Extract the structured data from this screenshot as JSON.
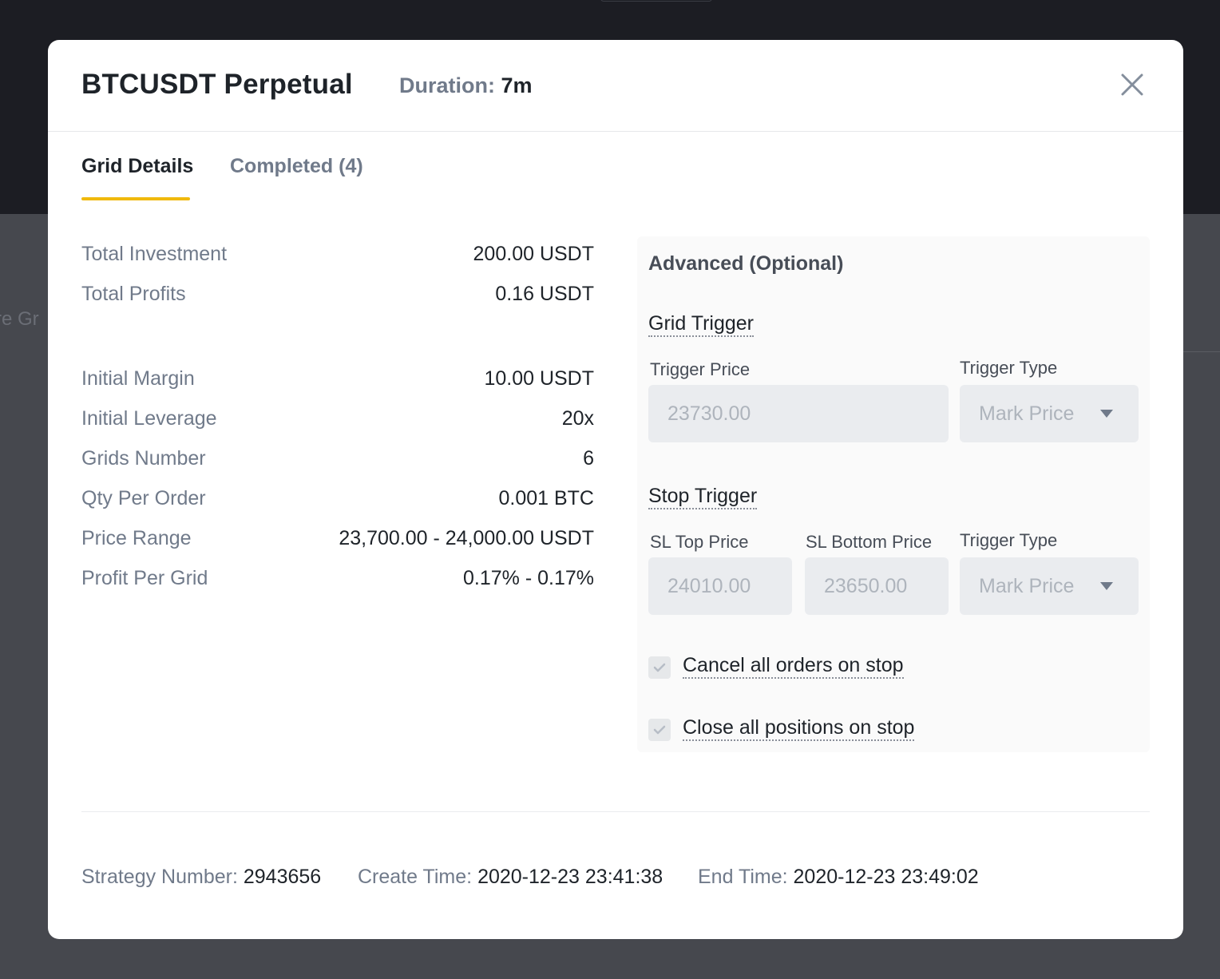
{
  "backdrop": {
    "side_text": "re Grid"
  },
  "modal": {
    "title": "BTCUSDT Perpetual",
    "duration_label": "Duration:",
    "duration_value": "7m",
    "close_icon": "close-icon"
  },
  "tabs": [
    {
      "label": "Grid Details",
      "active": true
    },
    {
      "label": "Completed (4)",
      "active": false
    }
  ],
  "accent_color": "#f0b90b",
  "details": [
    {
      "label": "Total Investment",
      "value": "200.00 USDT"
    },
    {
      "label": "Total Profits",
      "value": "0.16 USDT"
    },
    {
      "label": "Initial Margin",
      "value": "10.00 USDT"
    },
    {
      "label": "Initial Leverage",
      "value": "20x"
    },
    {
      "label": "Grids Number",
      "value": "6"
    },
    {
      "label": "Qty Per Order",
      "value": "0.001 BTC"
    },
    {
      "label": "Price Range",
      "value": "23,700.00 - 24,000.00 USDT"
    },
    {
      "label": "Profit Per Grid",
      "value": "0.17% - 0.17%"
    }
  ],
  "advanced": {
    "title": "Advanced (Optional)",
    "grid_trigger": {
      "title": "Grid Trigger",
      "trigger_price_label": "Trigger Price",
      "trigger_price_value": "23730.00",
      "trigger_type_label": "Trigger Type",
      "trigger_type_value": "Mark Price"
    },
    "stop_trigger": {
      "title": "Stop Trigger",
      "sl_top_label": "SL Top Price",
      "sl_top_value": "24010.00",
      "sl_bottom_label": "SL Bottom Price",
      "sl_bottom_value": "23650.00",
      "trigger_type_label": "Trigger Type",
      "trigger_type_value": "Mark Price"
    },
    "checkboxes": [
      {
        "label": "Cancel all orders on stop",
        "checked": true
      },
      {
        "label": "Close all positions on stop",
        "checked": true
      }
    ]
  },
  "footer": {
    "strategy_label": "Strategy Number:",
    "strategy_value": "2943656",
    "create_label": "Create Time:",
    "create_value": "2020-12-23 23:41:38",
    "end_label": "End Time:",
    "end_value": "2020-12-23 23:49:02"
  }
}
